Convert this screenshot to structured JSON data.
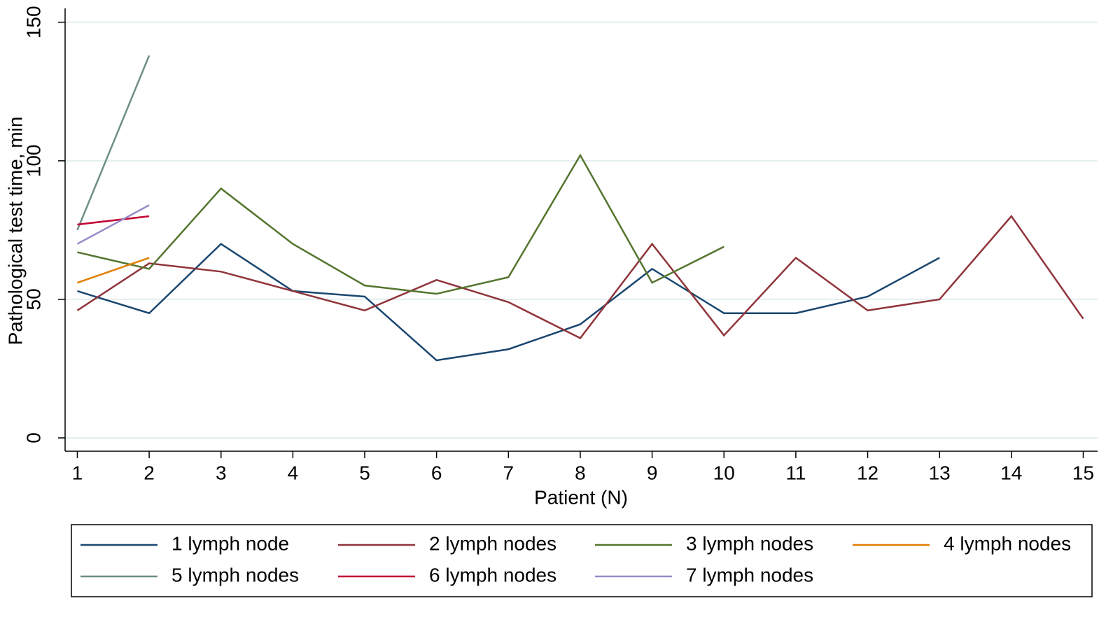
{
  "chart_data": {
    "type": "line",
    "x_label": "Patient (N)",
    "y_label": "Pathological test time, min",
    "x": [
      1,
      2,
      3,
      4,
      5,
      6,
      7,
      8,
      9,
      10,
      11,
      12,
      13,
      14,
      15
    ],
    "xlim": [
      0.83,
      15.2
    ],
    "xticks": [
      1,
      2,
      3,
      4,
      5,
      6,
      7,
      8,
      9,
      10,
      11,
      12,
      13,
      14,
      15
    ],
    "ylim": [
      -4.8,
      155
    ],
    "yticks": [
      0,
      50,
      100,
      150
    ],
    "grid": true,
    "series": [
      {
        "name": "1 lymph node",
        "color": "#1a476f",
        "values": [
          53,
          45,
          70,
          53,
          51,
          28,
          32,
          41,
          61,
          45,
          45,
          51,
          65,
          null,
          null
        ]
      },
      {
        "name": "2 lymph nodes",
        "color": "#90353b",
        "values": [
          46,
          63,
          60,
          53,
          46,
          57,
          49,
          36,
          70,
          37,
          65,
          46,
          50,
          80,
          43
        ]
      },
      {
        "name": "3 lymph nodes",
        "color": "#55752f",
        "values": [
          67,
          61,
          90,
          70,
          55,
          52,
          58,
          102,
          56,
          69,
          null,
          null,
          null,
          null,
          null
        ]
      },
      {
        "name": "4 lymph nodes",
        "color": "#e37e00",
        "values": [
          56,
          65,
          null,
          null,
          null,
          null,
          null,
          null,
          null,
          null,
          null,
          null,
          null,
          null,
          null
        ]
      },
      {
        "name": "5 lymph nodes",
        "color": "#6e8e84",
        "values": [
          75,
          138,
          null,
          null,
          null,
          null,
          null,
          null,
          null,
          null,
          null,
          null,
          null,
          null,
          null
        ]
      },
      {
        "name": "6 lymph nodes",
        "color": "#c10534",
        "values": [
          77,
          80,
          null,
          null,
          null,
          null,
          null,
          null,
          null,
          null,
          null,
          null,
          null,
          null,
          null
        ]
      },
      {
        "name": "7 lymph nodes",
        "color": "#9a8ac8",
        "values": [
          70,
          84,
          null,
          null,
          null,
          null,
          null,
          null,
          null,
          null,
          null,
          null,
          null,
          null,
          null
        ]
      }
    ]
  }
}
